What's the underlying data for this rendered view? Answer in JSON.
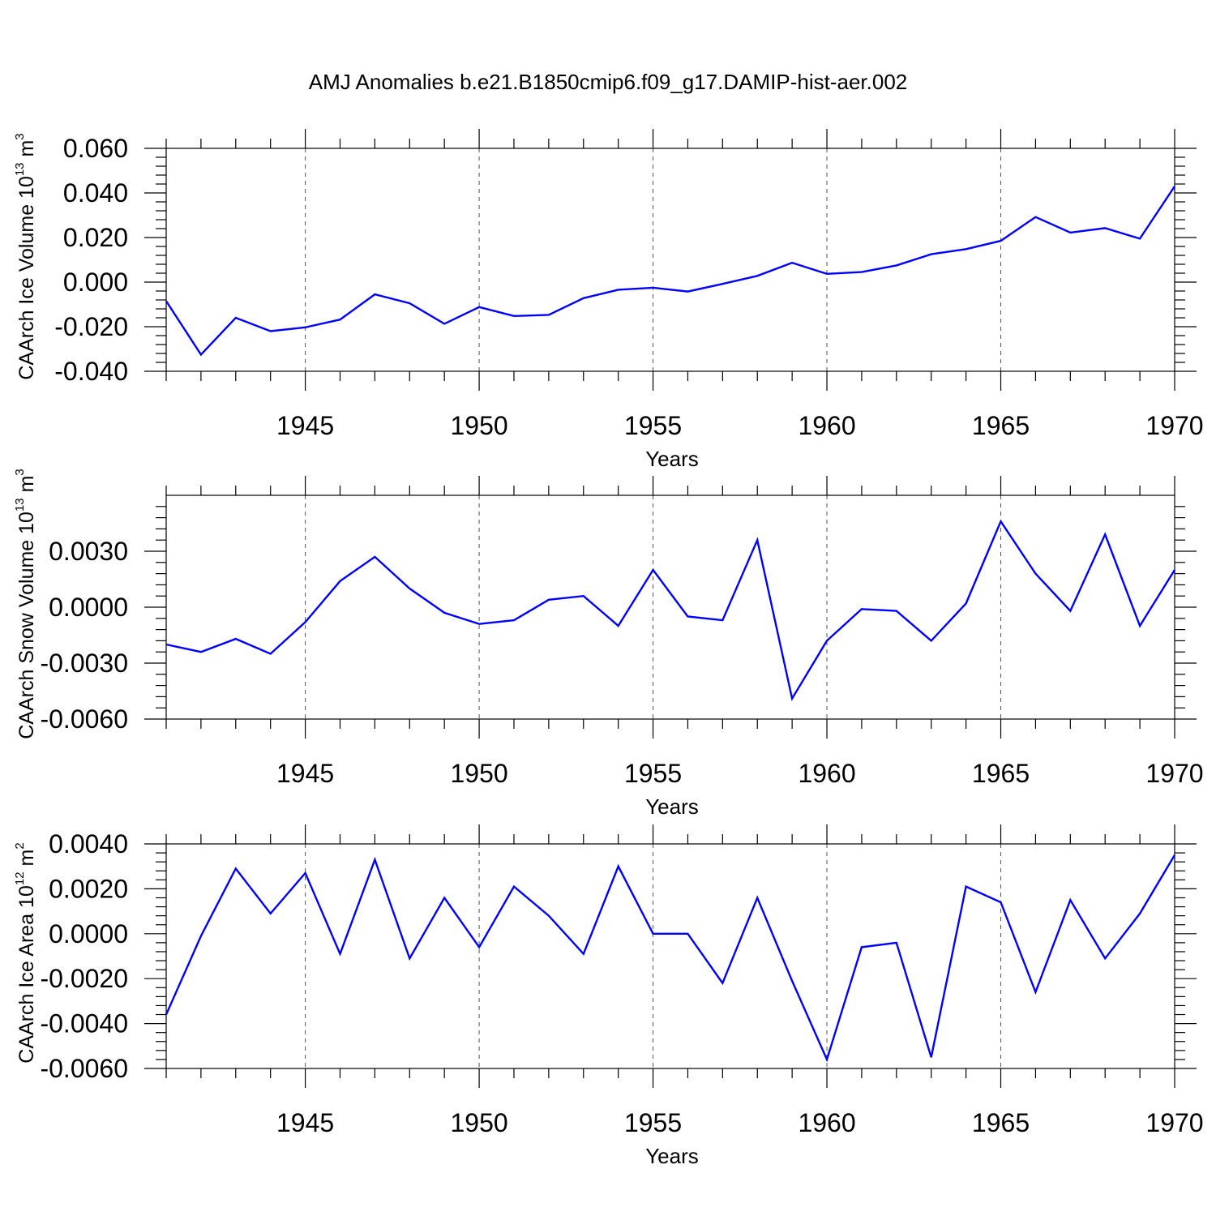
{
  "figure_title": "AMJ Anomalies b.e21.B1850cmip6.f09_g17.DAMIP-hist-aer.002",
  "colors": {
    "line": "#0000ff",
    "axes": "#000000",
    "grid": "#555555",
    "background": "#ffffff"
  },
  "chart_data": [
    {
      "type": "line",
      "id": "ice-volume",
      "title": "AMJ Anomalies b.e21.B1850cmip6.f09_g17.DAMIP-hist-aer.002",
      "xlabel": "Years",
      "ylabel": {
        "text": "CAArch Ice Volume 10",
        "sup": "13",
        "unit": " m",
        "unit_sup": "3"
      },
      "xlim": [
        1941,
        1970
      ],
      "ylim": [
        -0.04,
        0.06
      ],
      "xticks": [
        1945,
        1950,
        1955,
        1960,
        1965,
        1970
      ],
      "yticks": [
        -0.04,
        -0.02,
        0.0,
        0.02,
        0.04,
        0.06
      ],
      "ytick_labels": [
        "-0.040",
        "-0.020",
        "0.000",
        "0.020",
        "0.040",
        "0.060"
      ],
      "grid": "vertical dashed at major x ticks",
      "x": [
        1941,
        1942,
        1943,
        1944,
        1945,
        1946,
        1947,
        1948,
        1949,
        1950,
        1951,
        1952,
        1953,
        1954,
        1955,
        1956,
        1957,
        1958,
        1959,
        1960,
        1961,
        1962,
        1963,
        1964,
        1965,
        1966,
        1967,
        1968,
        1969,
        1970
      ],
      "series": [
        {
          "name": "CAArch Ice Volume",
          "values": [
            -0.0085,
            -0.0325,
            -0.016,
            -0.022,
            -0.0203,
            -0.0168,
            -0.0055,
            -0.0095,
            -0.0187,
            -0.0112,
            -0.0152,
            -0.0147,
            -0.0072,
            -0.0034,
            -0.0025,
            -0.0042,
            -0.0008,
            0.0028,
            0.0087,
            0.0037,
            0.0045,
            0.0075,
            0.0125,
            0.0148,
            0.0185,
            0.0292,
            0.0222,
            0.0242,
            0.0195,
            0.043
          ]
        }
      ]
    },
    {
      "type": "line",
      "id": "snow-volume",
      "title": "",
      "xlabel": "Years",
      "ylabel": {
        "text": "CAArch Snow Volume 10",
        "sup": "13",
        "unit": " m",
        "unit_sup": "3"
      },
      "xlim": [
        1941,
        1970
      ],
      "ylim": [
        -0.006,
        0.006
      ],
      "xticks": [
        1945,
        1950,
        1955,
        1960,
        1965,
        1970
      ],
      "yticks": [
        -0.006,
        -0.003,
        0.0,
        0.003
      ],
      "ytick_labels": [
        "-0.0060",
        "-0.0030",
        "0.0000",
        "0.0030"
      ],
      "grid": "vertical dashed at major x ticks",
      "x": [
        1941,
        1942,
        1943,
        1944,
        1945,
        1946,
        1947,
        1948,
        1949,
        1950,
        1951,
        1952,
        1953,
        1954,
        1955,
        1956,
        1957,
        1958,
        1959,
        1960,
        1961,
        1962,
        1963,
        1964,
        1965,
        1966,
        1967,
        1968,
        1969,
        1970
      ],
      "series": [
        {
          "name": "CAArch Snow Volume",
          "values": [
            -0.002,
            -0.0024,
            -0.0017,
            -0.0025,
            -0.0008,
            0.0014,
            0.0027,
            0.001,
            -0.0003,
            -0.0009,
            -0.0007,
            0.0004,
            0.0006,
            -0.001,
            0.002,
            -0.0005,
            -0.0007,
            0.0036,
            -0.0049,
            -0.0018,
            -0.0001,
            -0.0002,
            -0.0018,
            0.0002,
            0.0046,
            0.0018,
            -0.0002,
            0.0039,
            -0.001,
            0.002
          ]
        }
      ]
    },
    {
      "type": "line",
      "id": "ice-area",
      "title": "",
      "xlabel": "Years",
      "ylabel": {
        "text": "CAArch Ice Area 10",
        "sup": "12",
        "unit": " m",
        "unit_sup": "2"
      },
      "xlim": [
        1941,
        1970
      ],
      "ylim": [
        -0.006,
        0.004
      ],
      "xticks": [
        1945,
        1950,
        1955,
        1960,
        1965,
        1970
      ],
      "yticks": [
        -0.006,
        -0.004,
        -0.002,
        0.0,
        0.002,
        0.004
      ],
      "ytick_labels": [
        "-0.0060",
        "-0.0040",
        "-0.0020",
        "0.0000",
        "0.0020",
        "0.0040"
      ],
      "grid": "vertical dashed at major x ticks",
      "x": [
        1941,
        1942,
        1943,
        1944,
        1945,
        1946,
        1947,
        1948,
        1949,
        1950,
        1951,
        1952,
        1953,
        1954,
        1955,
        1956,
        1957,
        1958,
        1959,
        1960,
        1961,
        1962,
        1963,
        1964,
        1965,
        1966,
        1967,
        1968,
        1969,
        1970
      ],
      "series": [
        {
          "name": "CAArch Ice Area",
          "values": [
            -0.0036,
            -0.0001,
            0.0029,
            0.0009,
            0.0027,
            -0.0009,
            0.0033,
            -0.0011,
            0.0016,
            -0.0006,
            0.0021,
            0.0008,
            -0.0009,
            0.003,
            0.0,
            0.0,
            -0.0022,
            0.0016,
            -0.0021,
            -0.0056,
            -0.0006,
            -0.0004,
            -0.0055,
            0.0021,
            0.0014,
            -0.0026,
            0.0015,
            -0.0011,
            0.0009,
            0.0035
          ]
        }
      ]
    }
  ]
}
